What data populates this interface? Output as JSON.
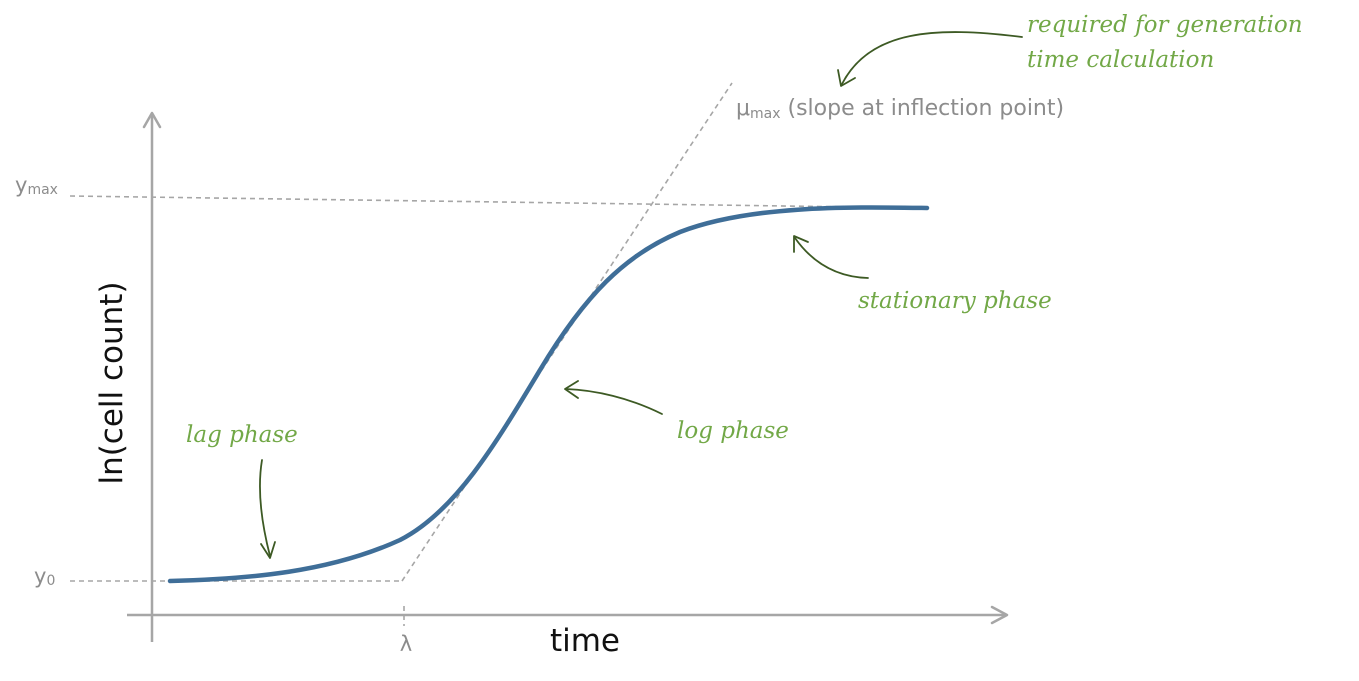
{
  "axes": {
    "y_label": "ln(cell count)",
    "x_label": "time",
    "y_max_symbol": "y",
    "y_max_subscript": "max",
    "y0_symbol": "y",
    "y0_subscript": "0",
    "lambda_label": "λ"
  },
  "mu_label": {
    "symbol": "μ",
    "subscript": "max",
    "text": " (slope at inflection point)"
  },
  "annotations": {
    "generation_line1": "required for generation",
    "generation_line2": "time calculation",
    "stationary": "stationary phase",
    "log": "log phase",
    "lag": "lag phase"
  },
  "colors": {
    "curve": "#3f6e98",
    "axis": "#a6a6a6",
    "annotation_text": "#72a847",
    "annotation_arrow": "#3d5a24",
    "label_gray": "#8c8c8c"
  }
}
